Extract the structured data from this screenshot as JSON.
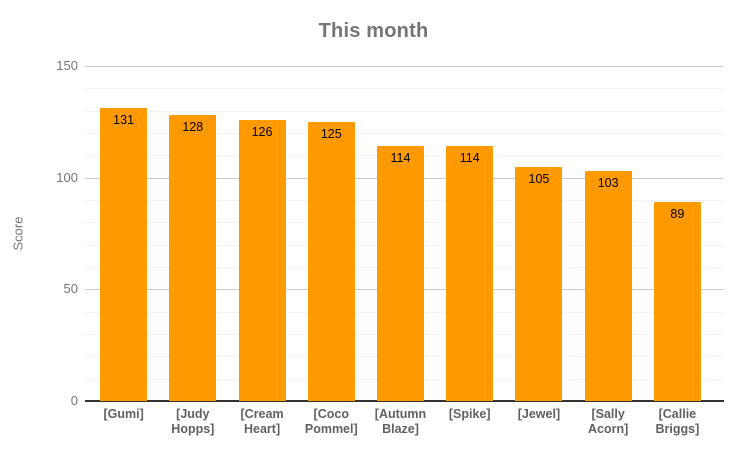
{
  "chart_data": {
    "type": "bar",
    "title": "This month",
    "xlabel": "",
    "ylabel": "Score",
    "categories": [
      "[Gumi]",
      "[Judy Hopps]",
      "[Cream Heart]",
      "[Coco Pommel]",
      "[Autumn Blaze]",
      "[Spike]",
      "[Jewel]",
      "[Sally Acorn]",
      "[Callie Briggs]"
    ],
    "values": [
      131,
      128,
      126,
      125,
      114,
      114,
      105,
      103,
      89
    ],
    "ylim": [
      0,
      150
    ],
    "yticks": [
      0,
      50,
      100,
      150
    ],
    "minor_gridline_step": 10,
    "grid": true,
    "legend": "none",
    "colors": {
      "bar": "#FF9900",
      "value_label": "#000000",
      "axis_tick_text": "#757575",
      "category_label": "#616161",
      "title": "#757575",
      "major_gridline": "#cccccc",
      "minor_gridline": "#f2f2f2",
      "baseline": "#333333",
      "background": "#ffffff"
    }
  }
}
